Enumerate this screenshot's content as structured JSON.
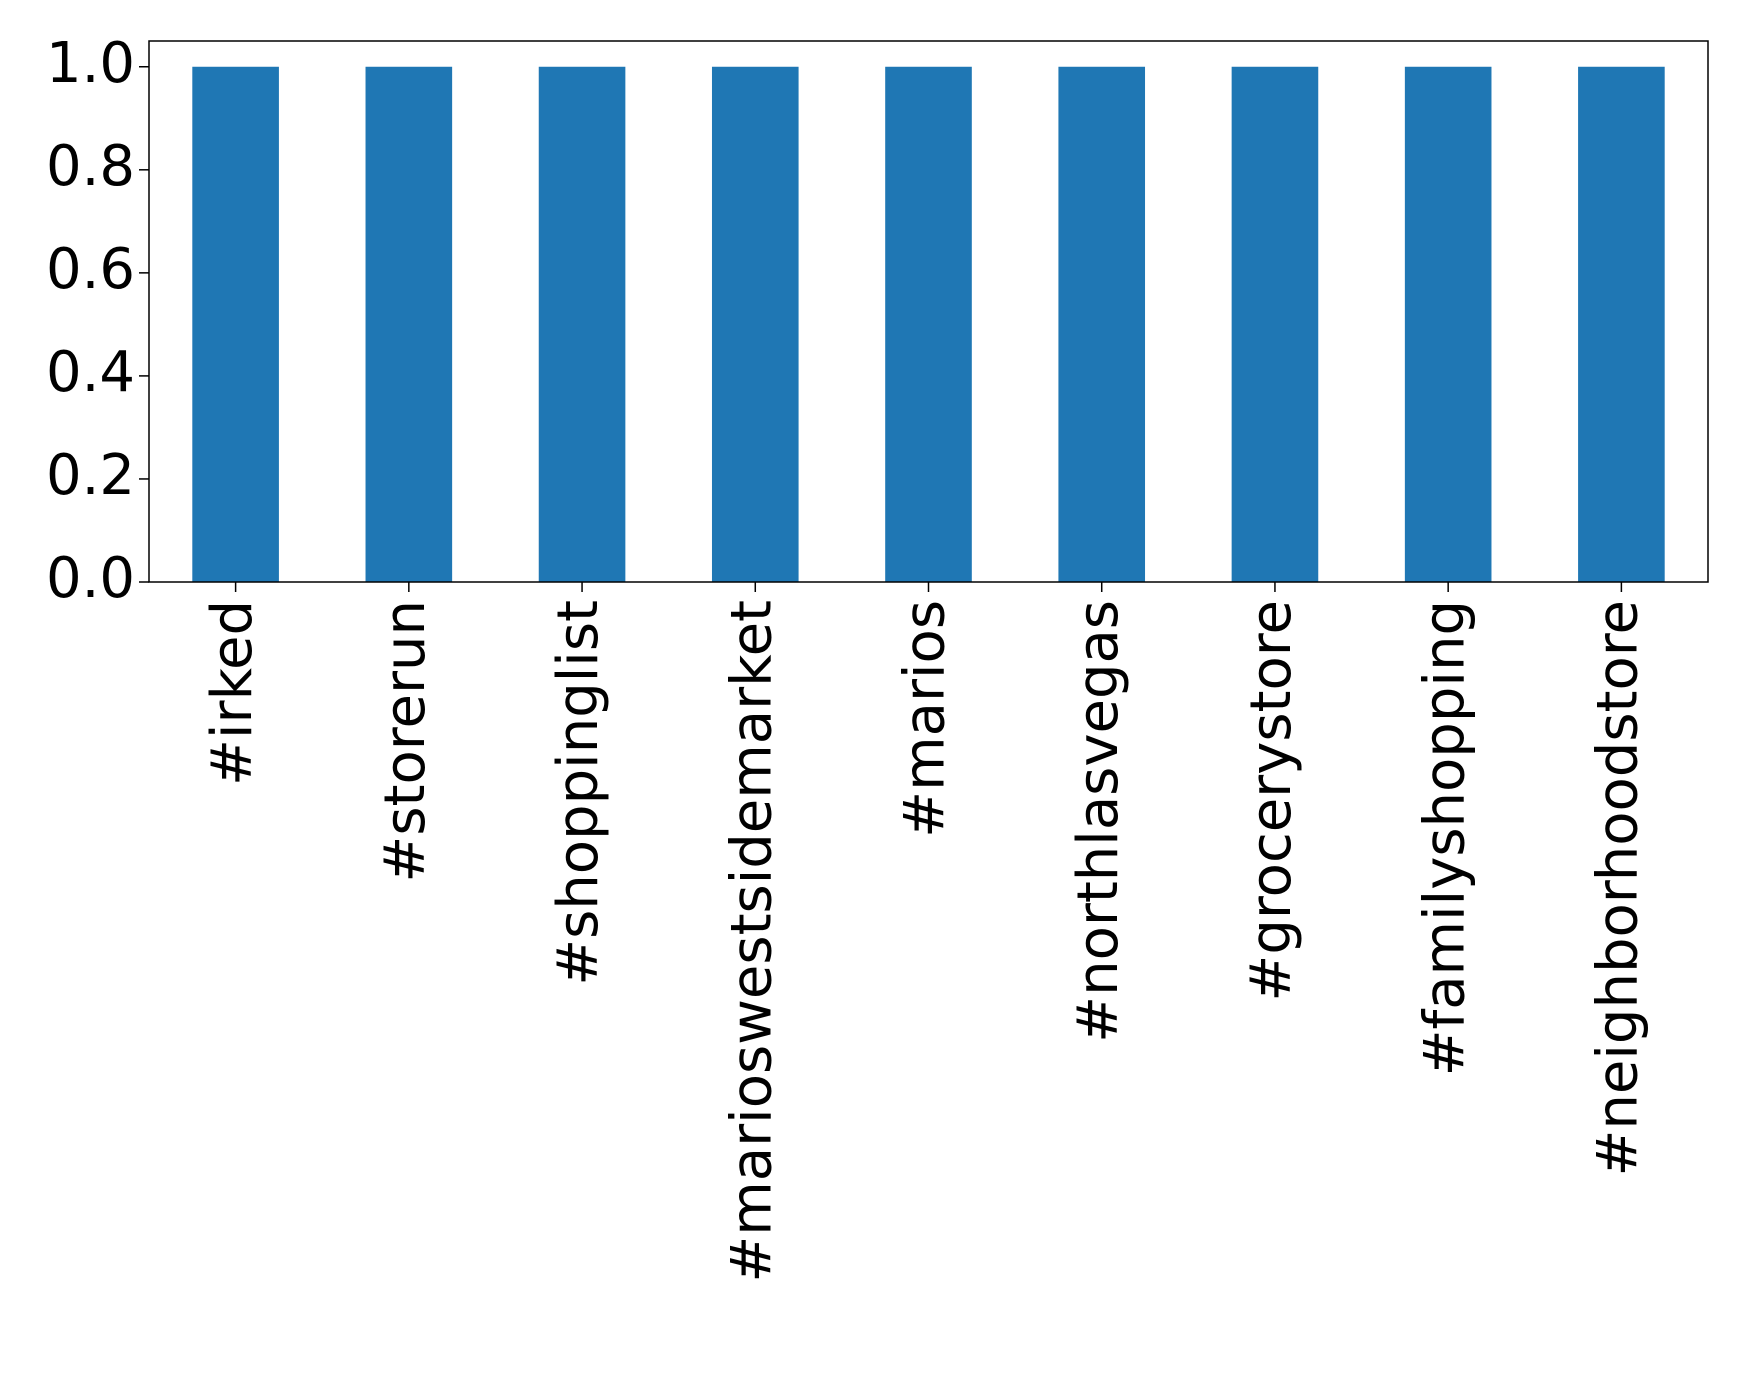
{
  "chart_data": {
    "type": "bar",
    "categories": [
      "#irked",
      "#storerun",
      "#shoppinglist",
      "#marioswestsidemarket",
      "#marios",
      "#northlasvegas",
      "#grocerystore",
      "#familyshopping",
      "#neighborhoodstore"
    ],
    "values": [
      1,
      1,
      1,
      1,
      1,
      1,
      1,
      1,
      1
    ],
    "color": "#1f77b4",
    "ylim": [
      0,
      1.05
    ],
    "yticks": [
      {
        "value": 0,
        "label": "0.0"
      },
      {
        "value": 0.2,
        "label": "0.2"
      },
      {
        "value": 0.4,
        "label": "0.4"
      },
      {
        "value": 0.6,
        "label": "0.6"
      },
      {
        "value": 0.8,
        "label": "0.8"
      },
      {
        "value": 1,
        "label": "1.0"
      }
    ],
    "grid": false
  }
}
